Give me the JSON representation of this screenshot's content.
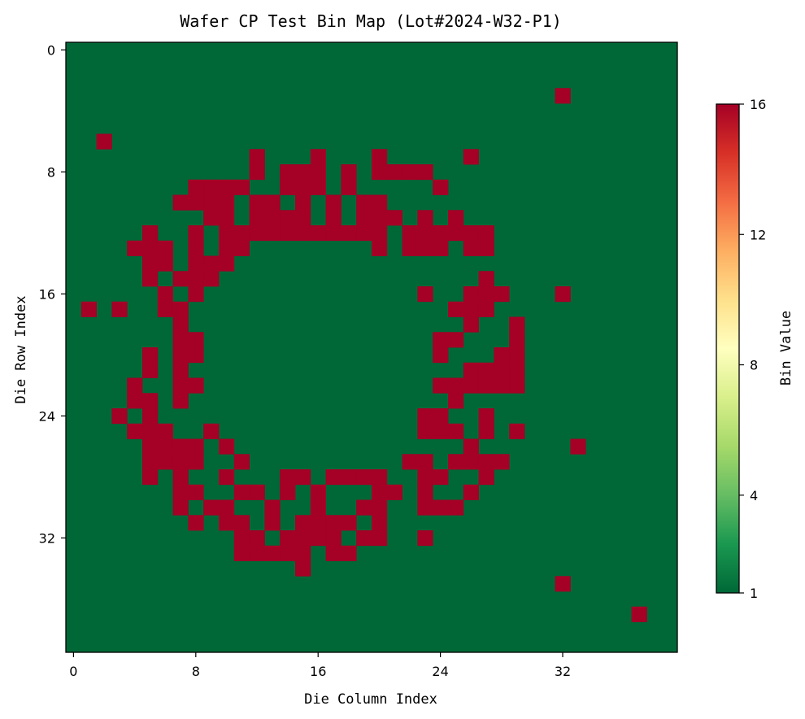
{
  "chart_data": {
    "type": "heatmap",
    "title": "Wafer CP Test Bin Map (Lot#2024-W32-P1)",
    "xlabel": "Die Column Index",
    "ylabel": "Die Row Index",
    "xlim": [
      -0.5,
      39.5
    ],
    "ylim": [
      39.5,
      -0.5
    ],
    "x_ticks": [
      0,
      8,
      16,
      24,
      32
    ],
    "y_ticks": [
      0,
      8,
      16,
      24,
      32
    ],
    "grid": false,
    "colorbar": {
      "label": "Bin Value",
      "colormap": "RdYlGn_r",
      "min": 1,
      "max": 16,
      "ticks": [
        1,
        4,
        8,
        12,
        16
      ],
      "stops": [
        "#006837",
        "#1a9850",
        "#66bd63",
        "#a6d96a",
        "#d9ef8b",
        "#ffffbf",
        "#fee08b",
        "#fdae61",
        "#f46d43",
        "#d73027",
        "#a50026"
      ]
    },
    "background_value": 1,
    "failing_value": 16,
    "grid_size": [
      40,
      40
    ],
    "fail_rows": [
      {
        "row": 3,
        "cols": [
          32
        ]
      },
      {
        "row": 6,
        "cols": [
          2
        ]
      },
      {
        "row": 7,
        "cols": [
          12,
          16,
          20,
          26
        ]
      },
      {
        "row": 8,
        "cols": [
          12,
          14,
          15,
          16,
          18,
          20,
          21,
          22,
          23
        ]
      },
      {
        "row": 9,
        "cols": [
          8,
          9,
          10,
          11,
          14,
          15,
          16,
          18,
          24
        ]
      },
      {
        "row": 10,
        "cols": [
          7,
          8,
          9,
          10,
          12,
          13,
          15,
          17,
          19,
          20
        ]
      },
      {
        "row": 11,
        "cols": [
          9,
          10,
          12,
          13,
          14,
          15,
          17,
          19,
          20,
          21,
          23,
          25
        ]
      },
      {
        "row": 12,
        "cols": [
          5,
          8,
          10,
          11,
          12,
          13,
          14,
          15,
          16,
          17,
          18,
          19,
          20,
          22,
          23,
          24,
          25,
          26,
          27
        ]
      },
      {
        "row": 13,
        "cols": [
          4,
          5,
          6,
          8,
          10,
          11,
          20,
          22,
          23,
          24,
          26,
          27
        ]
      },
      {
        "row": 14,
        "cols": [
          5,
          6,
          8,
          9,
          10
        ]
      },
      {
        "row": 15,
        "cols": [
          5,
          7,
          8,
          9,
          27
        ]
      },
      {
        "row": 16,
        "cols": [
          6,
          8,
          23,
          26,
          27,
          28,
          32
        ]
      },
      {
        "row": 17,
        "cols": [
          1,
          3,
          6,
          7,
          25,
          26,
          27
        ]
      },
      {
        "row": 18,
        "cols": [
          7,
          26,
          29
        ]
      },
      {
        "row": 19,
        "cols": [
          7,
          8,
          24,
          25,
          29
        ]
      },
      {
        "row": 20,
        "cols": [
          5,
          7,
          8,
          24,
          28,
          29
        ]
      },
      {
        "row": 21,
        "cols": [
          5,
          7,
          26,
          27,
          28,
          29
        ]
      },
      {
        "row": 22,
        "cols": [
          4,
          7,
          8,
          24,
          25,
          26,
          27,
          28,
          29
        ]
      },
      {
        "row": 23,
        "cols": [
          4,
          5,
          7,
          25
        ]
      },
      {
        "row": 24,
        "cols": [
          3,
          5,
          23,
          24,
          27
        ]
      },
      {
        "row": 25,
        "cols": [
          4,
          5,
          6,
          9,
          23,
          24,
          25,
          27,
          29
        ]
      },
      {
        "row": 26,
        "cols": [
          5,
          6,
          7,
          8,
          10,
          26,
          33
        ]
      },
      {
        "row": 27,
        "cols": [
          5,
          6,
          7,
          8,
          11,
          22,
          23,
          25,
          26,
          27,
          28
        ]
      },
      {
        "row": 28,
        "cols": [
          5,
          7,
          10,
          14,
          15,
          17,
          18,
          19,
          20,
          23,
          24,
          27
        ]
      },
      {
        "row": 29,
        "cols": [
          7,
          8,
          11,
          12,
          14,
          16,
          20,
          21,
          23,
          26
        ]
      },
      {
        "row": 30,
        "cols": [
          7,
          9,
          10,
          13,
          16,
          19,
          20,
          23,
          24,
          25
        ]
      },
      {
        "row": 31,
        "cols": [
          8,
          10,
          11,
          13,
          15,
          16,
          17,
          18,
          20
        ]
      },
      {
        "row": 32,
        "cols": [
          11,
          12,
          14,
          15,
          16,
          17,
          19,
          20,
          23
        ]
      },
      {
        "row": 33,
        "cols": [
          11,
          12,
          13,
          14,
          15,
          17,
          18
        ]
      },
      {
        "row": 34,
        "cols": [
          15
        ]
      },
      {
        "row": 35,
        "cols": [
          32
        ]
      },
      {
        "row": 37,
        "cols": [
          37
        ]
      }
    ]
  }
}
